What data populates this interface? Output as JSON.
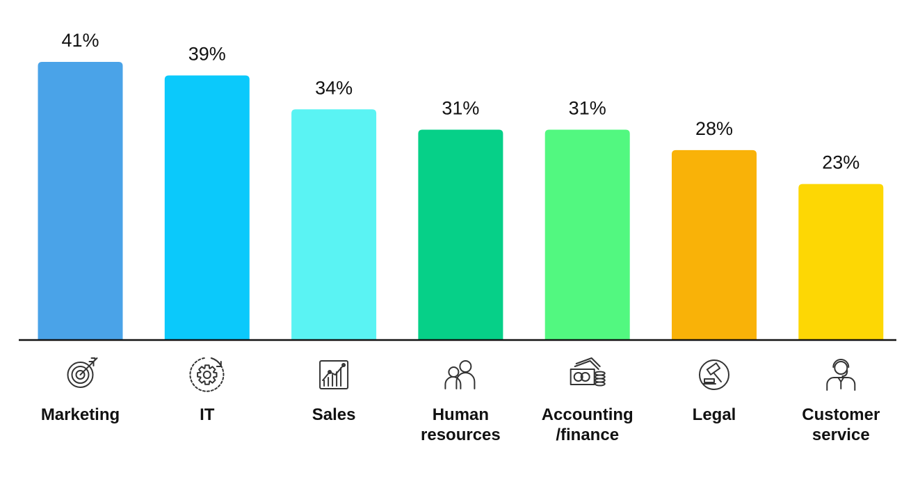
{
  "chart_data": {
    "type": "bar",
    "categories": [
      "Marketing",
      "IT",
      "Sales",
      "Human resources",
      "Accounting /finance",
      "Legal",
      "Customer service"
    ],
    "category_lines": [
      [
        "Marketing"
      ],
      [
        "IT"
      ],
      [
        "Sales"
      ],
      [
        "Human",
        "resources"
      ],
      [
        "Accounting",
        "/finance"
      ],
      [
        "Legal"
      ],
      [
        "Customer",
        "service"
      ]
    ],
    "values": [
      41,
      39,
      34,
      31,
      31,
      28,
      23
    ],
    "value_labels": [
      "41%",
      "39%",
      "34%",
      "31%",
      "31%",
      "28%",
      "23%"
    ],
    "colors": [
      "#4aa3e8",
      "#0bc9fb",
      "#5af3f3",
      "#06d088",
      "#52f880",
      "#f9b208",
      "#fdd704"
    ],
    "icons": [
      "target-icon",
      "gear-cycle-icon",
      "growth-chart-icon",
      "people-icon",
      "money-coins-icon",
      "gavel-icon",
      "support-agent-icon"
    ],
    "ylim": [
      0,
      41
    ],
    "grid": false,
    "legend": "none",
    "title": "",
    "xlabel": "",
    "ylabel": ""
  }
}
